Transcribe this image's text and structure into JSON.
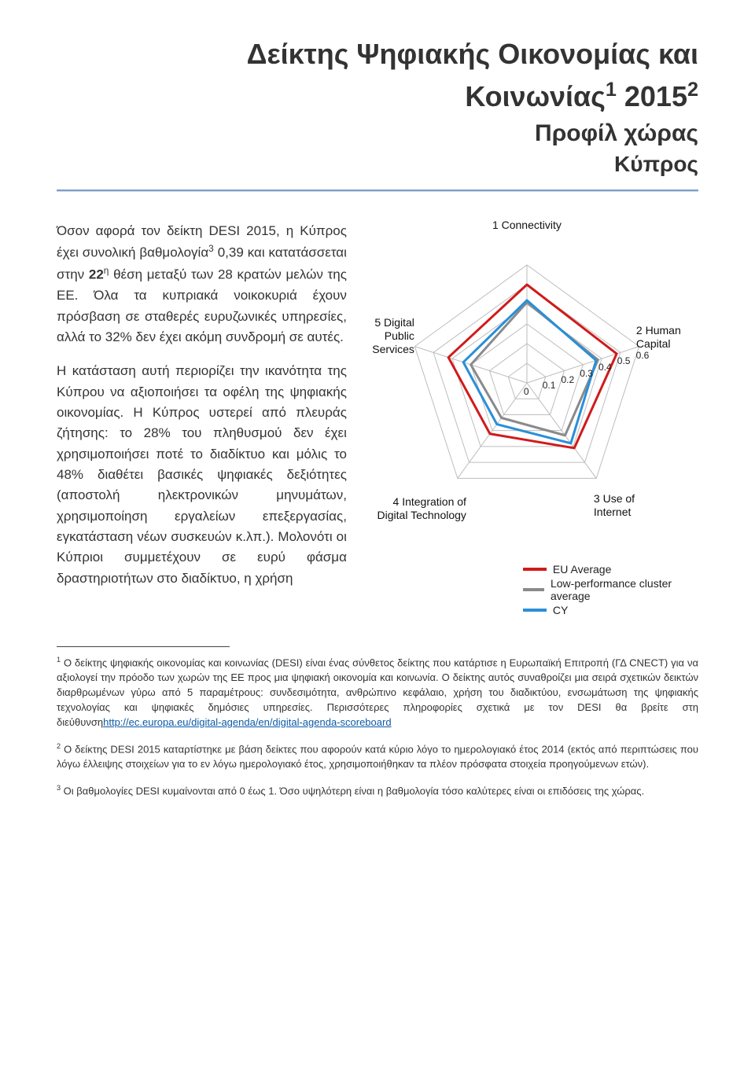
{
  "title_line1": "Δείκτης Ψηφιακής Οικονομίας και",
  "title_line2_pre": "Κοινωνίας",
  "title_line2_sup1": "1",
  "title_line2_year": " 2015",
  "title_line2_sup2": "2",
  "subtitle": "Προφίλ χώρας",
  "country": "Κύπρος",
  "body_para1_a": "Όσον αφορά τον δείκτη DESI 2015, η Κύπρος έχει συνολική βαθμολογία",
  "body_para1_sup3": "3",
  "body_para1_b": " 0,39 και κατατάσσεται στην ",
  "body_bold_22": "22",
  "body_sup_h": "η",
  "body_para1_c": " θέση μεταξύ των 28 κρατών μελών της ΕΕ. Όλα τα κυπριακά νοικοκυριά έχουν πρόσβαση σε σταθερές ευρυζωνικές υπηρεσίες, αλλά το 32% δεν έχει ακόμη συνδρομή σε αυτές.",
  "body_para2": "Η κατάσταση αυτή περιορίζει την ικανότητα της Κύπρου να αξιοποιήσει τα οφέλη της ψηφιακής οικονομίας. Η Κύπρος υστερεί από πλευράς ζήτησης: το 28% του πληθυσμού δεν έχει χρησιμοποιήσει ποτέ το διαδίκτυο και μόλις το 48% διαθέτει βασικές ψηφιακές δεξιότητες (αποστολή ηλεκτρονικών μηνυμάτων, χρησιμοποίηση εργαλείων επεξεργασίας, εγκατάσταση νέων συσκευών κ.λπ.). Μολονότι οι Κύπριοι συμμετέχουν σε ευρύ φάσμα δραστηριοτήτων στο διαδίκτυο, η χρήση",
  "radar": {
    "axes": [
      "1 Connectivity",
      "2 Human Capital",
      "3 Use of Internet",
      "4 Integration of Digital Technology",
      "5 Digital Public Services"
    ],
    "scale_max": 0.6,
    "scale_ticks": [
      "0",
      "0.1",
      "0.2",
      "0.3",
      "0.4",
      "0.5",
      "0.6"
    ],
    "rings": 6,
    "series": [
      {
        "label": "EU Average",
        "color": "#d11a1a",
        "values": [
          0.5,
          0.48,
          0.41,
          0.32,
          0.42
        ]
      },
      {
        "label": "Low-performance cluster average",
        "color": "#8a8a8a",
        "values": [
          0.41,
          0.38,
          0.33,
          0.22,
          0.3
        ]
      },
      {
        "label": "CY",
        "color": "#2a8fd8",
        "values": [
          0.42,
          0.37,
          0.38,
          0.26,
          0.34
        ]
      }
    ],
    "grid_color": "#bdbdbd",
    "background": "#ffffff"
  },
  "footnotes": {
    "f1_num": "1",
    "f1_text_a": " Ο δείκτης ψηφιακής οικονομίας και κοινωνίας (DESI) είναι ένας σύνθετος δείκτης που κατάρτισε η Ευρωπαϊκή Επιτροπή (ΓΔ CNECT) για να αξιολογεί την πρόοδο των χωρών της ΕΕ προς μια ψηφιακή οικονομία και κοινωνία. Ο δείκτης αυτός συναθροίζει μια σειρά σχετικών δεικτών διαρθρωμένων γύρω από 5 παραμέτρους: συνδεσιμότητα, ανθρώπινο κεφάλαιο, χρήση του διαδικτύου, ενσωμάτωση της ψηφιακής τεχνολογίας και ψηφιακές δημόσιες υπηρεσίες. Περισσότερες πληροφορίες σχετικά με τον DESI θα βρείτε στη διεύθυνση",
    "f1_link_text": "http://ec.europa.eu/digital-agenda/en/digital-agenda-scoreboard",
    "f2_num": "2",
    "f2_text": " Ο δείκτης DESI 2015 καταρτίστηκε με βάση δείκτες που αφορούν κατά κύριο λόγο το ημερολογιακό έτος 2014 (εκτός από περιπτώσεις που λόγω έλλειψης στοιχείων για το εν λόγω ημερολογιακό έτος, χρησιμοποιήθηκαν τα πλέον πρόσφατα στοιχεία προηγούμενων ετών).",
    "f3_num": "3",
    "f3_text": " Οι βαθμολογίες DESI κυμαίνονται από 0 έως 1. Όσο υψηλότερη είναι η βαθμολογία τόσο καλύτερες είναι οι επιδόσεις της χώρας."
  }
}
